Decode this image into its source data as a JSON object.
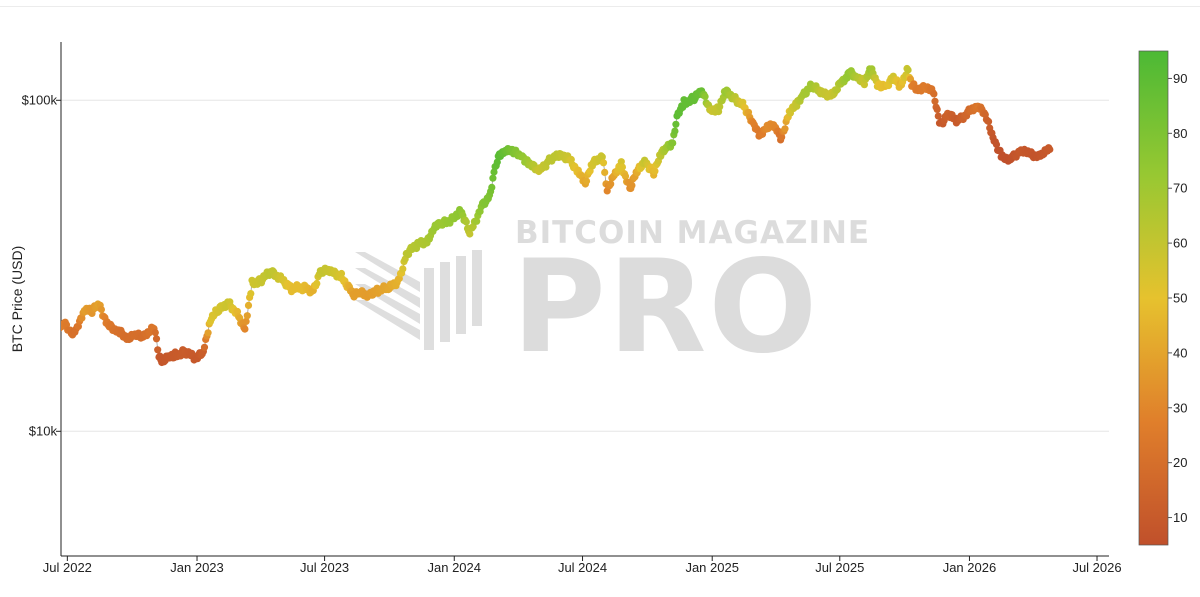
{
  "chart_data": {
    "type": "scatter",
    "ylabel": "BTC Price (USD)",
    "y_scale": "log",
    "ylim": [
      4200,
      150000
    ],
    "xlim": [
      "2022-06-22",
      "2026-07-18"
    ],
    "x_ticks": [
      "2022-07-01",
      "2023-01-01",
      "2023-07-01",
      "2024-01-01",
      "2024-07-01",
      "2025-01-01",
      "2025-07-01",
      "2026-01-01",
      "2026-07-01"
    ],
    "x_tick_labels": [
      "Jul 2022",
      "Jan 2023",
      "Jul 2023",
      "Jan 2024",
      "Jul 2024",
      "Jan 2025",
      "Jul 2025",
      "Jan 2026",
      "Jul 2026"
    ],
    "y_ticks": [
      10000,
      100000
    ],
    "y_tick_labels": [
      "$10k",
      "$100k"
    ],
    "colorbar": {
      "range": [
        5,
        95
      ],
      "ticks": [
        10,
        20,
        30,
        40,
        50,
        60,
        70,
        80,
        90
      ],
      "colors": [
        "#c0502b",
        "#e07f2b",
        "#e6c22e",
        "#97c832",
        "#4cb935"
      ]
    },
    "grid": true,
    "watermark": "BITCOIN MAGAZINE PRO",
    "series": [
      {
        "x": [
          "2022-06-20",
          "2022-06-28",
          "2022-07-05",
          "2022-07-10",
          "2022-07-15",
          "2022-07-25",
          "2022-08-05",
          "2022-08-15",
          "2022-08-25",
          "2022-09-05",
          "2022-09-15",
          "2022-09-25",
          "2022-10-05",
          "2022-10-15",
          "2022-10-25",
          "2022-11-01",
          "2022-11-08",
          "2022-11-12",
          "2022-11-20",
          "2022-12-01",
          "2022-12-15",
          "2022-12-31",
          "2023-01-10",
          "2023-01-20",
          "2023-02-01",
          "2023-02-15",
          "2023-03-01",
          "2023-03-10",
          "2023-03-20",
          "2023-04-01",
          "2023-04-15",
          "2023-05-01",
          "2023-05-15",
          "2023-06-01",
          "2023-06-15",
          "2023-06-25",
          "2023-07-10",
          "2023-07-25",
          "2023-08-10",
          "2023-08-20",
          "2023-09-01",
          "2023-09-15",
          "2023-10-01",
          "2023-10-15",
          "2023-10-25",
          "2023-11-10",
          "2023-11-25",
          "2023-12-05",
          "2023-12-15",
          "2024-01-01",
          "2024-01-10",
          "2024-01-23",
          "2024-02-10",
          "2024-02-20",
          "2024-02-28",
          "2024-03-05",
          "2024-03-14",
          "2024-03-25",
          "2024-04-05",
          "2024-04-15",
          "2024-04-30",
          "2024-05-15",
          "2024-05-25",
          "2024-06-10",
          "2024-06-25",
          "2024-07-05",
          "2024-07-15",
          "2024-07-29",
          "2024-08-05",
          "2024-08-15",
          "2024-08-25",
          "2024-09-06",
          "2024-09-15",
          "2024-09-27",
          "2024-10-10",
          "2024-10-20",
          "2024-10-29",
          "2024-11-06",
          "2024-11-12",
          "2024-11-22",
          "2024-12-05",
          "2024-12-17",
          "2024-12-30",
          "2025-01-10",
          "2025-01-20",
          "2025-02-01",
          "2025-02-15",
          "2025-02-28",
          "2025-03-10",
          "2025-03-20",
          "2025-04-01",
          "2025-04-08",
          "2025-04-22",
          "2025-05-01",
          "2025-05-10",
          "2025-05-22",
          "2025-06-05",
          "2025-06-20",
          "2025-07-10",
          "2025-07-14",
          "2025-07-25",
          "2025-08-05",
          "2025-08-14",
          "2025-08-25",
          "2025-09-05",
          "2025-09-15",
          "2025-09-25",
          "2025-10-06",
          "2025-10-11",
          "2025-10-20",
          "2025-11-01",
          "2025-11-10",
          "2025-11-21",
          "2025-12-01",
          "2025-12-15",
          "2026-01-05",
          "2026-01-14",
          "2026-01-25",
          "2026-02-05",
          "2026-02-15",
          "2026-02-25",
          "2026-03-05",
          "2026-03-15",
          "2026-03-25",
          "2026-04-05",
          "2026-04-15",
          "2026-04-25"
        ],
        "y": [
          20500,
          21000,
          20100,
          19800,
          20500,
          23500,
          23000,
          24200,
          21500,
          20100,
          19800,
          19200,
          19500,
          19300,
          20200,
          20700,
          16800,
          16300,
          16600,
          17000,
          17400,
          16550,
          17400,
          21900,
          23300,
          24500,
          22300,
          20100,
          28000,
          28500,
          30300,
          28900,
          27000,
          27200,
          26500,
          30600,
          30300,
          29400,
          26000,
          26100,
          25900,
          26700,
          27100,
          28700,
          34400,
          36600,
          37800,
          42300,
          42200,
          44200,
          46700,
          39500,
          48300,
          51500,
          62000,
          68000,
          71500,
          69500,
          68000,
          65000,
          60700,
          66000,
          68500,
          67000,
          61000,
          56800,
          64000,
          67900,
          54000,
          58800,
          64100,
          54000,
          60000,
          65700,
          60600,
          68400,
          72200,
          75000,
          88600,
          98500,
          101000,
          106000,
          93400,
          94500,
          106000,
          102000,
          96000,
          84300,
          78500,
          84000,
          82500,
          76300,
          93600,
          96500,
          104000,
          111000,
          104800,
          104000,
          118000,
          121500,
          117700,
          114000,
          123500,
          111000,
          110800,
          116000,
          111000,
          124500,
          110600,
          108000,
          110100,
          105500,
          84500,
          91000,
          86400,
          94000,
          97000,
          88000,
          76000,
          68500,
          65000,
          68000,
          70500,
          69200,
          68000,
          69500,
          71000
        ],
        "colors": [
          27,
          26,
          22,
          20,
          21,
          38,
          35,
          40,
          26,
          22,
          20,
          19,
          20,
          19,
          22,
          23,
          9,
          8,
          9,
          10,
          11,
          9,
          12,
          52,
          55,
          58,
          45,
          30,
          57,
          58,
          62,
          56,
          48,
          48,
          44,
          60,
          58,
          54,
          38,
          38,
          37,
          39,
          41,
          45,
          62,
          65,
          67,
          72,
          71,
          74,
          76,
          60,
          78,
          80,
          88,
          91,
          86,
          80,
          75,
          70,
          58,
          62,
          62,
          58,
          48,
          40,
          55,
          58,
          30,
          40,
          55,
          32,
          40,
          60,
          45,
          62,
          70,
          78,
          90,
          88,
          88,
          86,
          58,
          60,
          72,
          64,
          52,
          28,
          24,
          32,
          30,
          20,
          55,
          60,
          68,
          70,
          60,
          58,
          72,
          74,
          66,
          58,
          72,
          50,
          48,
          56,
          45,
          60,
          28,
          24,
          26,
          22,
          8,
          14,
          10,
          20,
          24,
          14,
          7,
          5,
          4,
          7,
          9,
          8,
          7,
          8,
          10
        ]
      }
    ]
  }
}
